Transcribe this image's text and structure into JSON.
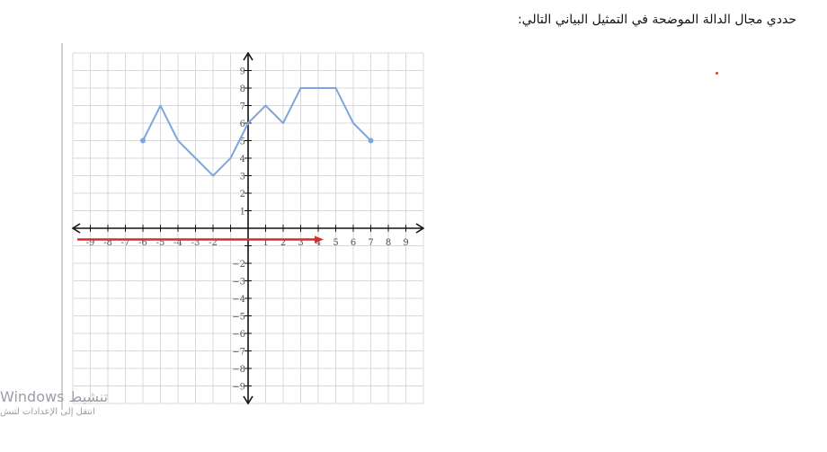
{
  "question": "حددي مجال الدالة الموضحة في التمثيل البياني التالي:",
  "watermark": {
    "title": "تنشيط Windows",
    "subtitle": "انتقل إلى الإعدادات لتنش"
  },
  "colors": {
    "curve": "#7ea6de",
    "arrow": "#d32f2f",
    "grid": "#d8d8d8",
    "axis": "#111111",
    "dot": "#e53935"
  },
  "chart_data": {
    "type": "line",
    "xlim": [
      -10,
      10
    ],
    "ylim": [
      -10,
      10
    ],
    "grid": true,
    "x_tick_labels": [
      "-9",
      "-8",
      "-7",
      "-6",
      "-5",
      "-4",
      "-3",
      "-2",
      "1",
      "2",
      "3",
      "4",
      "5",
      "6",
      "7",
      "8",
      "9"
    ],
    "y_tick_labels": [
      "9",
      "8",
      "7",
      "6",
      "5",
      "4",
      "3",
      "2",
      "1",
      "−2",
      "−3",
      "−4",
      "−5",
      "−6",
      "−7",
      "−8",
      "−9"
    ],
    "series": [
      {
        "x": [
          -6,
          -5,
          -4,
          -2,
          -1,
          0,
          1,
          2,
          3,
          5,
          6,
          7
        ],
        "y": [
          5,
          7,
          5,
          3,
          4,
          6,
          7,
          6,
          8,
          8,
          6,
          5
        ],
        "endpoints": "closed"
      }
    ],
    "annotation_arrow": {
      "from_x": -10,
      "to_x": 4,
      "y": -1
    }
  }
}
